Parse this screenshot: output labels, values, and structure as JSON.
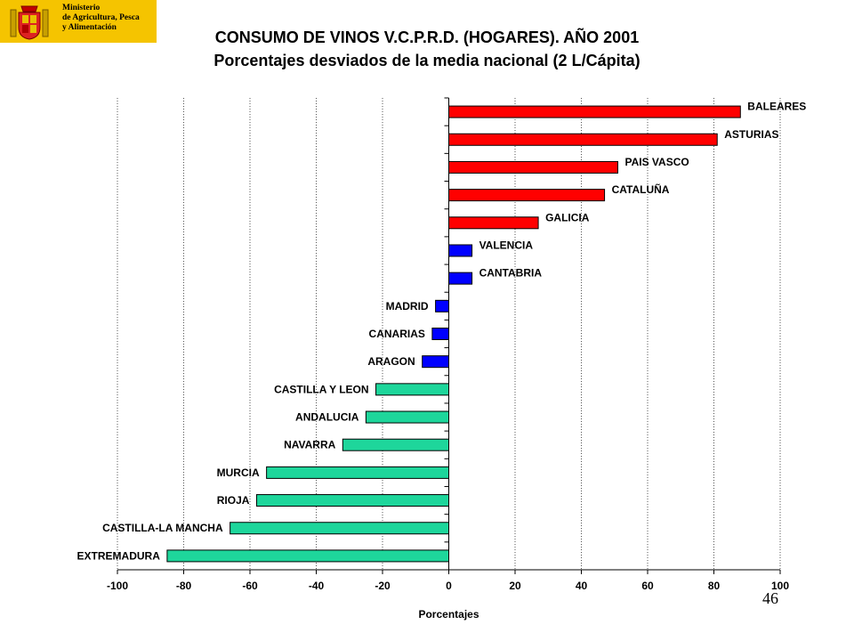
{
  "header": {
    "ministry_lines": [
      "Ministerio",
      "de Agricultura, Pesca",
      "y Alimentación"
    ],
    "brand_color": "#f5c400"
  },
  "page_number": "46",
  "chart_data": {
    "type": "bar",
    "orientation": "horizontal",
    "title": "CONSUMO DE VINOS V.C.P.R.D. (HOGARES). AÑO 2001",
    "subtitle": "Porcentajes desviados de la media nacional (2 L/Cápita)",
    "xlabel": "Porcentajes",
    "xlim": [
      -100,
      100
    ],
    "xticks": [
      -100,
      -80,
      -60,
      -40,
      -20,
      0,
      20,
      40,
      60,
      80,
      100
    ],
    "grid": "vertical dotted",
    "legend": "none",
    "colors": {
      "high": "#ff0000",
      "mid": "#0000ff",
      "low": "#1ed69b"
    },
    "categories": [
      "BALEARES",
      "ASTURIAS",
      "PAIS VASCO",
      "CATALUÑA",
      "GALICIA",
      "VALENCIA",
      "CANTABRIA",
      "MADRID",
      "CANARIAS",
      "ARAGON",
      "CASTILLA Y LEON",
      "ANDALUCIA",
      "NAVARRA",
      "MURCIA",
      "RIOJA",
      "CASTILLA-LA MANCHA",
      "EXTREMADURA"
    ],
    "values": [
      88,
      81,
      51,
      47,
      27,
      7,
      7,
      -4,
      -5,
      -8,
      -22,
      -25,
      -32,
      -55,
      -58,
      -66,
      -85
    ],
    "groups": [
      "high",
      "high",
      "high",
      "high",
      "high",
      "mid",
      "mid",
      "mid",
      "mid",
      "mid",
      "low",
      "low",
      "low",
      "low",
      "low",
      "low",
      "low"
    ]
  }
}
